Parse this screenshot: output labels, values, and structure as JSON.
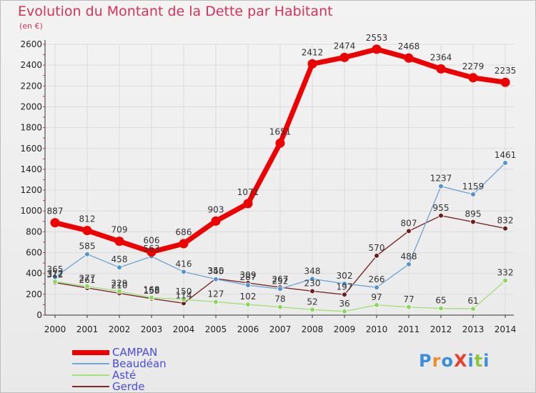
{
  "title": "Evolution du Montant de la Dette par Habitant",
  "unit_label": "(en €)",
  "brand": "ProXiti",
  "colors": {
    "title": "#d6325b",
    "legend_text": "#4a4adf",
    "grid": "#dcdcdc",
    "axis": "#333333",
    "brand": [
      "#3a8fd8",
      "#e8902a",
      "#3a8fd8",
      "#e8402a",
      "#3a8fd8",
      "#8cc43a",
      "#3a8fd8"
    ]
  },
  "chart_data": {
    "type": "line",
    "title": "Evolution du Montant de la Dette par Habitant",
    "ylabel": "(en €)",
    "xlabel": "",
    "x": [
      "2000",
      "2001",
      "2002",
      "2003",
      "2004",
      "2005",
      "2006",
      "2007",
      "2008",
      "2009",
      "2010",
      "2011",
      "2012",
      "2013",
      "2014"
    ],
    "ylim": [
      0,
      2600
    ],
    "yticks": [
      "0",
      "200",
      "400",
      "600",
      "800",
      "1000",
      "1200",
      "1400",
      "1600",
      "1800",
      "2000",
      "2200",
      "2400",
      "2600"
    ],
    "grid": true,
    "legend_position": "bottom-left",
    "series": [
      {
        "name": "CAMPAN",
        "color": "#ee0000",
        "marker": "#ee0000",
        "values": [
          887,
          812,
          709,
          606,
          686,
          903,
          1071,
          1651,
          2412,
          2474,
          2553,
          2468,
          2364,
          2279,
          2235
        ],
        "labels": [
          "887",
          "812",
          "709",
          "606",
          "686",
          "903",
          "1071",
          "1651",
          "2412",
          "2474",
          "2553",
          "2468",
          "2364",
          "2279",
          "2235"
        ]
      },
      {
        "name": "Beaudéan",
        "color": "#74a8d4",
        "marker": "#4f93d0",
        "values": [
          365,
          585,
          458,
          563,
          416,
          345,
          287,
          252,
          348,
          302,
          266,
          488,
          1237,
          1159,
          1461
        ],
        "labels": [
          "365",
          "585",
          "458",
          "563",
          "416",
          "345",
          "287",
          "252",
          "348",
          "302",
          "266",
          "488",
          "1237",
          "1159",
          "1461"
        ]
      },
      {
        "name": "Asté",
        "color": "#a3e07e",
        "marker": "#88d85a",
        "values": [
          322,
          277,
          229,
          168,
          150,
          127,
          102,
          78,
          52,
          36,
          97,
          77,
          65,
          61,
          332
        ],
        "labels": [
          "322",
          "277",
          "229",
          "168",
          "150",
          "127",
          "102",
          "78",
          "52",
          "36",
          "97",
          "77",
          "65",
          "61",
          "332"
        ]
      },
      {
        "name": "Gerde",
        "color": "#7a2a2a",
        "marker": "#6b1b1b",
        "values": [
          312,
          261,
          210,
          158,
          114,
          350,
          309,
          267,
          230,
          197,
          570,
          807,
          955,
          895,
          832
        ],
        "labels": [
          "312",
          "261",
          "210",
          "158",
          "114",
          "350",
          "309",
          "267",
          "230",
          "197",
          "570",
          "807",
          "955",
          "895",
          "832"
        ]
      }
    ]
  }
}
